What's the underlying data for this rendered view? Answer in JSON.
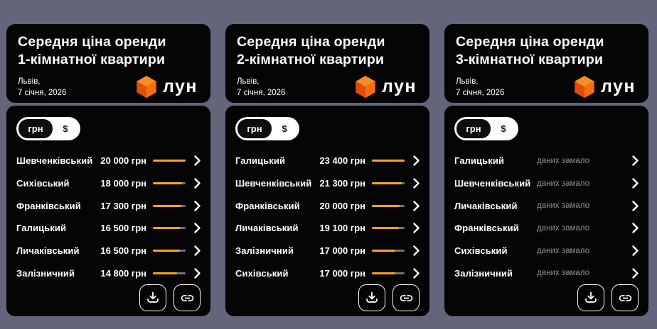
{
  "page": {
    "background_color": "#63657A",
    "card_color": "#050506"
  },
  "brand": {
    "logo_text": "лун",
    "cube_top_color": "#FB8B24",
    "cube_left_color": "#E14E08",
    "cube_right_color": "#F96E0B"
  },
  "currency_toggle": {
    "uah_label": "грн",
    "usd_label": "$",
    "selected": "грн"
  },
  "colors": {
    "bar_fill": "#FFA41C",
    "bar_track": "#71737F",
    "no_data_text": "#8E8E99",
    "text": "#FFFFFF"
  },
  "cards": [
    {
      "title_line1": "Середня ціна оренди",
      "title_line2": "1-кімнатної квартири",
      "city": "Львів,",
      "date": "7 січня, 2026",
      "rows": [
        {
          "district": "Шевченківський",
          "price": "20 000 грн",
          "bar_fill_pct": 100
        },
        {
          "district": "Сихівський",
          "price": "18 000 грн",
          "bar_fill_pct": 90
        },
        {
          "district": "Франківський",
          "price": "17 300 грн",
          "bar_fill_pct": 86.5
        },
        {
          "district": "Галицький",
          "price": "16 500 грн",
          "bar_fill_pct": 82.5
        },
        {
          "district": "Личаківський",
          "price": "16 500 грн",
          "bar_fill_pct": 82.5
        },
        {
          "district": "Залізничний",
          "price": "14 800 грн",
          "bar_fill_pct": 74
        }
      ]
    },
    {
      "title_line1": "Середня ціна оренди",
      "title_line2": "2-кімнатної квартири",
      "city": "Львів,",
      "date": "7 січня, 2026",
      "rows": [
        {
          "district": "Галицький",
          "price": "23 400 грн",
          "bar_fill_pct": 100
        },
        {
          "district": "Шевченківський",
          "price": "21 300 грн",
          "bar_fill_pct": 91
        },
        {
          "district": "Франківський",
          "price": "20 000 грн",
          "bar_fill_pct": 85.5
        },
        {
          "district": "Личаківський",
          "price": "19 100 грн",
          "bar_fill_pct": 81.6
        },
        {
          "district": "Залізничний",
          "price": "17 000 грн",
          "bar_fill_pct": 72.6
        },
        {
          "district": "Сихівський",
          "price": "17 000 грн",
          "bar_fill_pct": 72.6
        }
      ]
    },
    {
      "title_line1": "Середня ціна оренди",
      "title_line2": "3-кімнатної квартири",
      "city": "Львів,",
      "date": "7 січня, 2026",
      "rows": [
        {
          "district": "Галицький",
          "no_data": "даних замало"
        },
        {
          "district": "Шевченківський",
          "no_data": "даних замало"
        },
        {
          "district": "Личаківський",
          "no_data": "даних замало"
        },
        {
          "district": "Франківський",
          "no_data": "даних замало"
        },
        {
          "district": "Сихівський",
          "no_data": "даних замало"
        },
        {
          "district": "Залізничний",
          "no_data": "даних замало"
        }
      ]
    }
  ]
}
